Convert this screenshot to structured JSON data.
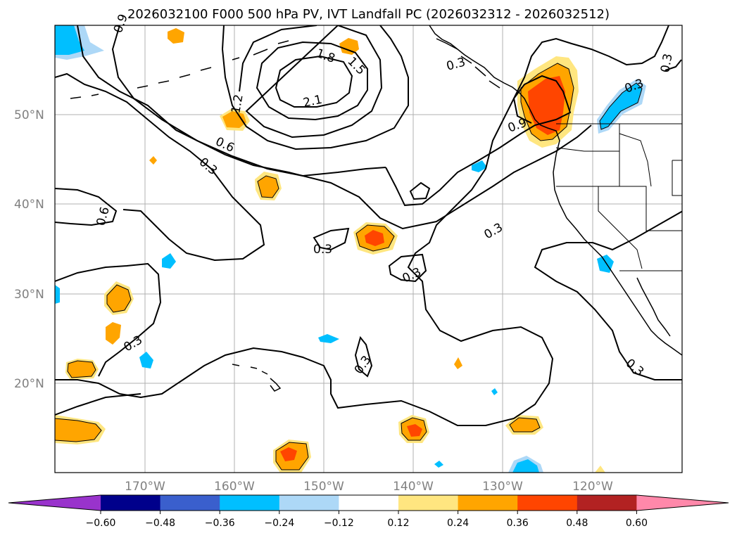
{
  "title": "2026032100 F000 500 hPa PV, IVT Landfall PC (2026032312 - 2026032512)",
  "lat_labels": [
    "50°N",
    "40°N",
    "30°N",
    "20°N"
  ],
  "lon_labels": [
    "170°W",
    "160°W",
    "150°W",
    "140°W",
    "130°W",
    "120°W"
  ],
  "contour_labels": [
    "0.9",
    "1.8",
    "1.5",
    "2.1",
    "1.2",
    "0.6",
    "0.3",
    "0.6",
    "0.3",
    "0.3",
    "0.3",
    "0.3",
    "0.3",
    "0.3",
    "0.9",
    "0.3",
    "0.3",
    "0.3"
  ],
  "colorbar": {
    "ticks": [
      "−0.60",
      "−0.48",
      "−0.36",
      "−0.24",
      "−0.12",
      "0.12",
      "0.24",
      "0.36",
      "0.48",
      "0.60"
    ],
    "colors": [
      "#9933cc",
      "#00008b",
      "#3a5fcd",
      "#00bfff",
      "#add8f7",
      "#ffffff",
      "#ffe680",
      "#ffa500",
      "#ff4500",
      "#b22222",
      "#ff88aa"
    ]
  },
  "colors": {
    "pos1": "#ffe680",
    "pos2": "#ffa500",
    "pos3": "#ff4500",
    "neg1": "#add8f7",
    "neg2": "#00bfff",
    "neg3": "#3a5fcd"
  }
}
